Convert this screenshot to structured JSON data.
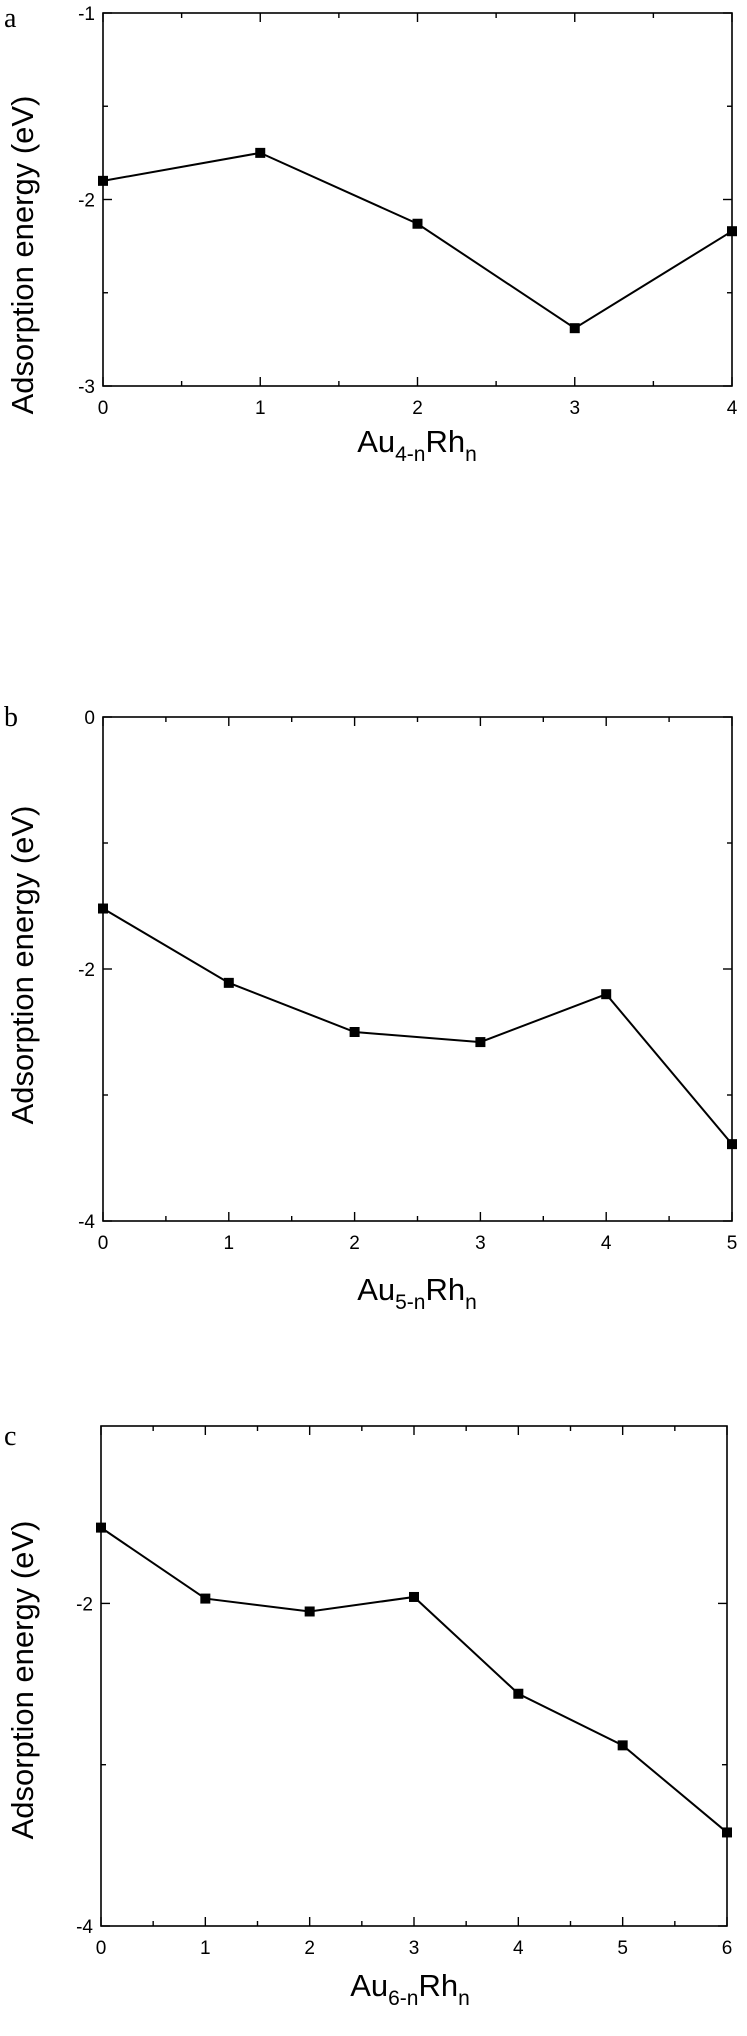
{
  "chart_data": [
    {
      "type": "line",
      "panel_label": "a",
      "ylabel": "Adsorption energy (eV)",
      "xlabel": {
        "base1": "Au",
        "sub1": "4-n",
        "base2": "Rh",
        "sub2": "n"
      },
      "xlim": [
        0,
        4
      ],
      "ylim": [
        -3,
        -1
      ],
      "xticks": [
        0,
        1,
        2,
        3,
        4
      ],
      "yticks": [
        -1,
        -2,
        -3
      ],
      "ytick_labels": [
        "-1",
        "-2",
        "-3"
      ],
      "series": [
        {
          "x": [
            0,
            1,
            2,
            3,
            4
          ],
          "y": [
            -1.9,
            -1.75,
            -2.13,
            -2.69,
            -2.17
          ]
        }
      ],
      "grid": false
    },
    {
      "type": "line",
      "panel_label": "b",
      "ylabel": "Adsorption energy (eV)",
      "xlabel": {
        "base1": "Au",
        "sub1": "5-n",
        "base2": "Rh",
        "sub2": "n"
      },
      "xlim": [
        0,
        5
      ],
      "ylim": [
        -4,
        0
      ],
      "xticks": [
        0,
        1,
        2,
        3,
        4,
        5
      ],
      "yticks": [
        0,
        -2,
        -4
      ],
      "ytick_labels": [
        "0",
        "-2",
        "-4"
      ],
      "series": [
        {
          "x": [
            0,
            1,
            2,
            3,
            4,
            5
          ],
          "y": [
            -1.52,
            -2.11,
            -2.5,
            -2.58,
            -2.2,
            -3.39
          ]
        }
      ],
      "grid": false
    },
    {
      "type": "line",
      "panel_label": "c",
      "ylabel": "Adsorption energy (eV)",
      "xlabel": {
        "base1": "Au",
        "sub1": "6-n",
        "base2": "Rh",
        "sub2": "n"
      },
      "xlim": [
        0,
        6
      ],
      "ylim": [
        -4,
        -0.9
      ],
      "xticks": [
        0,
        1,
        2,
        3,
        4,
        5,
        6
      ],
      "yticks": [
        -2,
        -4
      ],
      "ytick_labels": [
        "-2",
        "-4"
      ],
      "series": [
        {
          "x": [
            0,
            1,
            2,
            3,
            4,
            5,
            6
          ],
          "y": [
            -1.53,
            -1.97,
            -2.05,
            -1.96,
            -2.56,
            -2.88,
            -3.42
          ]
        }
      ],
      "grid": false
    }
  ]
}
